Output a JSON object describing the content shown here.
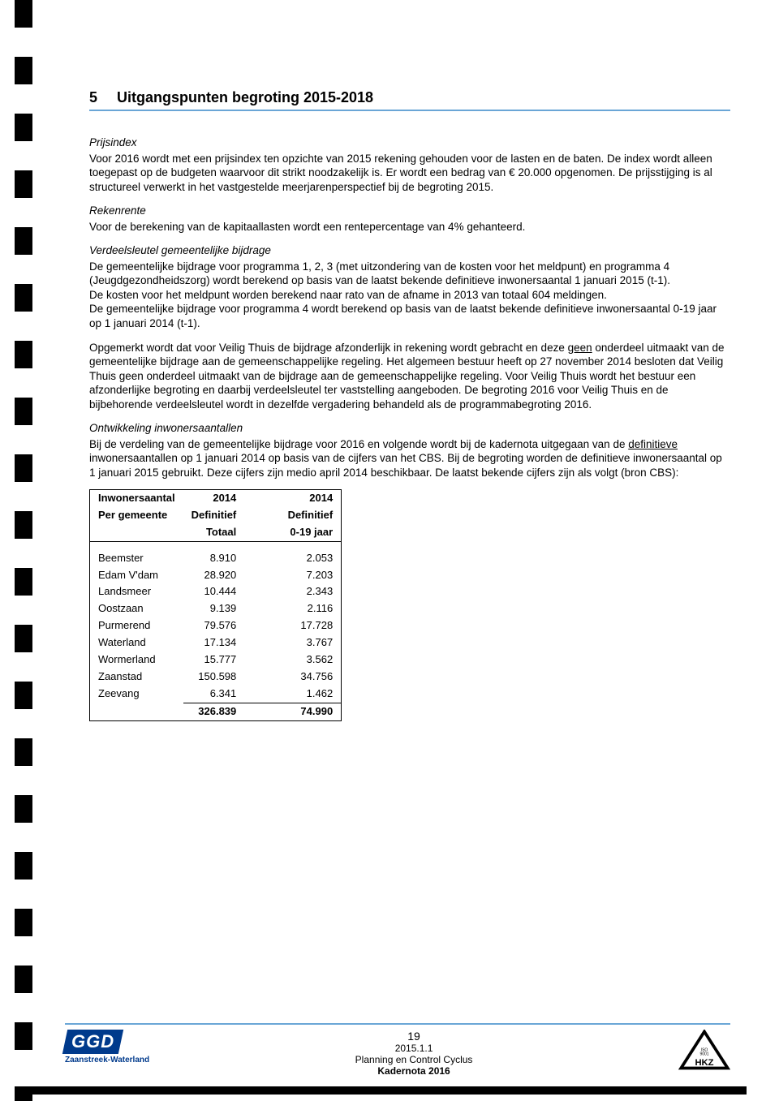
{
  "section": {
    "num": "5",
    "title": "Uitgangspunten begroting 2015-2018"
  },
  "hdr": {
    "prijsindex": "Prijsindex",
    "rekenrente": "Rekenrente",
    "verdeel": "Verdeelsleutel gemeentelijke bijdrage",
    "ontwikkeling": "Ontwikkeling inwonersaantallen"
  },
  "text": {
    "p_prijs": "Voor 2016 wordt met een prijsindex ten opzichte van 2015 rekening gehouden voor de lasten en de baten. De index wordt alleen toegepast op de budgeten waarvoor dit strikt noodzakelijk is. Er wordt een bedrag van € 20.000 opgenomen. De prijsstijging is al structureel verwerkt in het vastgestelde meerjarenperspectief bij de begroting 2015.",
    "p_reken": "Voor de berekening van de kapitaallasten wordt een rentepercentage van 4% gehanteerd.",
    "p_verdeel1": "De gemeentelijke bijdrage voor programma 1, 2, 3 (met uitzondering van de kosten voor het meldpunt) en programma 4 (Jeugdgezondheidszorg) wordt berekend op basis van de laatst bekende definitieve inwonersaantal 1 januari 2015 (t-1).",
    "p_verdeel2": "De kosten voor het meldpunt worden berekend naar rato van de afname in 2013 van totaal 604 meldingen.",
    "p_verdeel3": "De gemeentelijke bijdrage voor programma 4 wordt berekend op basis van de laatst bekende definitieve inwonersaantal 0-19 jaar op 1 januari 2014 (t-1).",
    "p_opg_a": "Opgemerkt wordt dat voor Veilig Thuis de bijdrage afzonderlijk in rekening wordt gebracht en deze ",
    "p_opg_u": "geen",
    "p_opg_b": " onderdeel uitmaakt van de gemeentelijke bijdrage aan de gemeenschappelijke regeling. Het algemeen bestuur heeft op 27 november 2014 besloten dat Veilig Thuis geen onderdeel uitmaakt van de bijdrage aan de gemeenschappelijke regeling. Voor Veilig Thuis wordt het bestuur een afzonderlijke begroting en daarbij verdeelsleutel ter vaststelling aangeboden. De begroting 2016 voor Veilig Thuis en de bijbehorende verdeelsleutel wordt in dezelfde vergadering behandeld als de programmabegroting 2016.",
    "p_ont_a": "Bij de verdeling van de gemeentelijke bijdrage voor 2016 en volgende wordt bij de kadernota uitgegaan van de ",
    "p_ont_u": "definitieve",
    "p_ont_b": " inwonersaantallen op 1 januari 2014 op basis van de cijfers van het CBS. Bij de begroting worden de definitieve inwonersaantal op 1 januari 2015 gebruikt. Deze cijfers zijn medio april 2014 beschikbaar. De laatst bekende cijfers zijn als volgt (bron CBS):"
  },
  "table": {
    "h1a": "Inwonersaantal",
    "h1b": "Per gemeente",
    "h2a": "2014",
    "h2b": "Definitief",
    "h2c": "Totaal",
    "h3a": "2014",
    "h3b": "Definitief",
    "h3c": "0-19 jaar",
    "rows": [
      {
        "n": "Beemster",
        "t": "8.910",
        "j": "2.053"
      },
      {
        "n": "Edam V'dam",
        "t": "28.920",
        "j": "7.203"
      },
      {
        "n": "Landsmeer",
        "t": "10.444",
        "j": "2.343"
      },
      {
        "n": "Oostzaan",
        "t": "9.139",
        "j": "2.116"
      },
      {
        "n": "Purmerend",
        "t": "79.576",
        "j": "17.728"
      },
      {
        "n": "Waterland",
        "t": "17.134",
        "j": "3.767"
      },
      {
        "n": "Wormerland",
        "t": "15.777",
        "j": "3.562"
      },
      {
        "n": "Zaanstad",
        "t": "150.598",
        "j": "34.756"
      },
      {
        "n": "Zeevang",
        "t": "6.341",
        "j": "1.462"
      }
    ],
    "tot_t": "326.839",
    "tot_j": "74.990"
  },
  "footer": {
    "page": "19",
    "code": "2015.1.1",
    "line": "Planning en Control Cyclus",
    "doc": "Kadernota 2016",
    "logo_sub": "Zaanstreek-Waterland",
    "logo_text": "GGD",
    "hkz_small": "ISO 9001",
    "hkz": "HKZ"
  },
  "colors": {
    "rule": "#6aa6d6",
    "logo": "#003a8c"
  }
}
